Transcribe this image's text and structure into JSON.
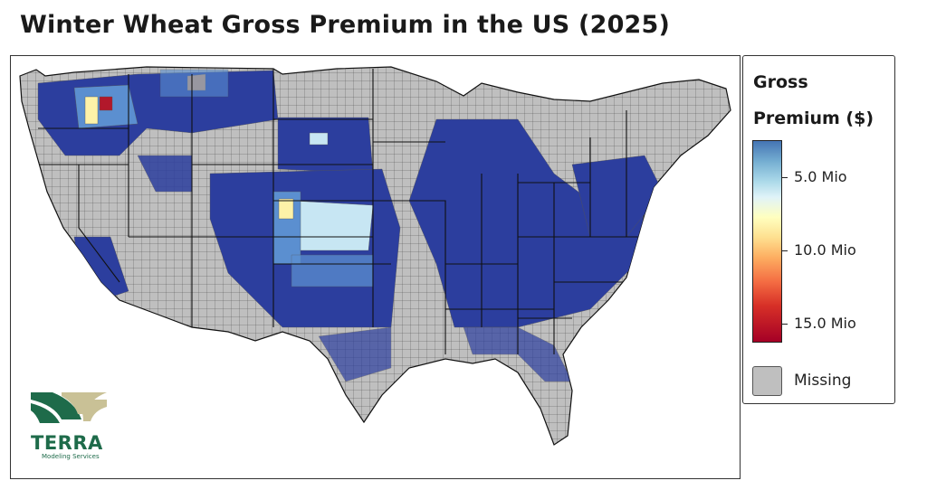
{
  "title": "Winter Wheat Gross Premium in the US (2025)",
  "legend": {
    "title_line1": "Gross",
    "title_line2": "Premium ($)",
    "ticks": [
      "5.0 Mio",
      "10.0 Mio",
      "15.0 Mio"
    ],
    "missing_label": "Missing",
    "missing_color": "#bfbfbf",
    "colormap": [
      "#4575b4",
      "#74add1",
      "#abd9e9",
      "#e0f3f8",
      "#ffffbf",
      "#fee090",
      "#fdae61",
      "#f46d43",
      "#d73027",
      "#a50026"
    ]
  },
  "colors": {
    "low_premium": "#2c3e9e",
    "medium_low": "#5b8fd0",
    "medium": "#c7e6f3",
    "high": "#fdf2a8",
    "very_high": "#f4a259",
    "max": "#b2182b",
    "state_border": "#111111"
  },
  "logo": {
    "name": "TERRA",
    "subtitle": "Modeling Services"
  }
}
